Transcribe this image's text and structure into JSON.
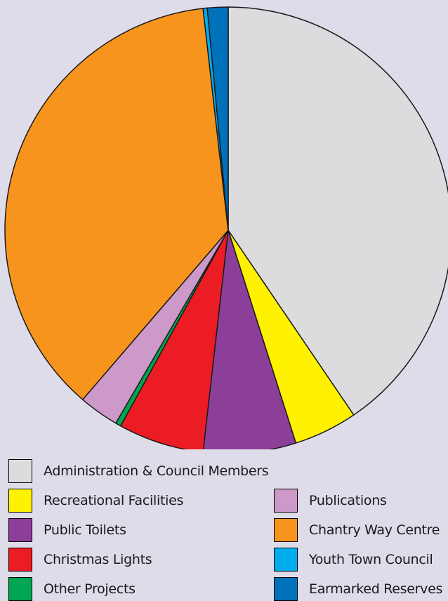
{
  "chart_data": {
    "type": "pie",
    "slices": [
      {
        "label": "Administration & Council Members",
        "value": 40.5,
        "color": "#dcdcde"
      },
      {
        "label": "Recreational Facilities",
        "value": 4.6,
        "color": "#fff200"
      },
      {
        "label": "Public Toilets",
        "value": 6.7,
        "color": "#8c3f98"
      },
      {
        "label": "Christmas Lights",
        "value": 6.2,
        "color": "#ec1c24"
      },
      {
        "label": "Other Projects",
        "value": 0.4,
        "color": "#00a651"
      },
      {
        "label": "Publications",
        "value": 2.9,
        "color": "#cc99c9"
      },
      {
        "label": "Chantry Way Centre",
        "value": 36.9,
        "color": "#f7941d"
      },
      {
        "label": "Youth Town Council",
        "value": 0.3,
        "color": "#00aeef"
      },
      {
        "label": "Earmarked Reserves",
        "value": 1.5,
        "color": "#0072bc"
      }
    ],
    "start": "top",
    "direction": "clockwise",
    "legend_position": "bottom"
  }
}
